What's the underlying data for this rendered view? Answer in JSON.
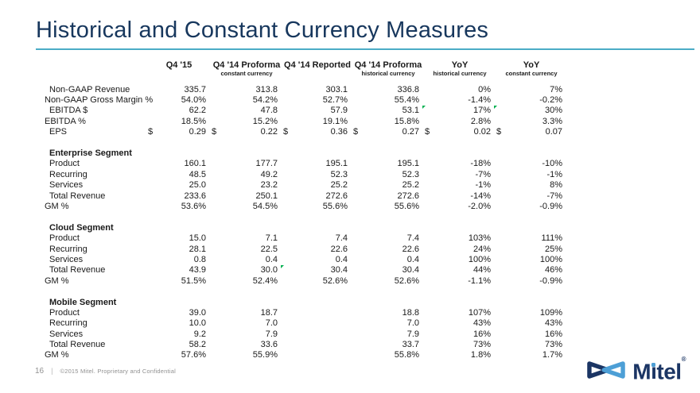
{
  "title": "Historical and Constant Currency Measures",
  "colors": {
    "title": "#17375d",
    "accent": "#4bacc6",
    "text": "#1a1a1a",
    "marker": "#00b050",
    "footer": "#919191",
    "logo_dark": "#1b3564",
    "logo_light": "#4d9fd6"
  },
  "table": {
    "currency_symbol": "$",
    "columns": [
      {
        "label": "Q4 '15",
        "sub": ""
      },
      {
        "label": "Q4 '14 Proforma",
        "sub": "constant currency"
      },
      {
        "label": "Q4 '14 Reported",
        "sub": ""
      },
      {
        "label": "Q4 '14 Proforma",
        "sub": "historical currency"
      },
      {
        "label": "YoY",
        "sub": "historical currency"
      },
      {
        "label": "YoY",
        "sub": "constant currency"
      }
    ],
    "rows": [
      {
        "type": "data",
        "label": "Non-GAAP Revenue",
        "values": [
          "335.7",
          "313.8",
          "303.1",
          "336.8",
          "0%",
          "7%"
        ]
      },
      {
        "type": "pct",
        "label": "Non-GAAP Gross Margin %",
        "values": [
          "54.0%",
          "54.2%",
          "52.7%",
          "55.4%",
          "-1.4%",
          "-0.2%"
        ]
      },
      {
        "type": "data",
        "label": "EBITDA $",
        "values": [
          "62.2",
          "47.8",
          "57.9",
          "53.1",
          "17%",
          "30%"
        ],
        "markers": [
          3,
          4
        ]
      },
      {
        "type": "pct",
        "label": "EBITDA %",
        "values": [
          "18.5%",
          "15.2%",
          "19.1%",
          "15.8%",
          "2.8%",
          "3.3%"
        ]
      },
      {
        "type": "currency",
        "label": "EPS",
        "values": [
          "0.29",
          "0.22",
          "0.36",
          "0.27",
          "0.02",
          "0.07"
        ]
      },
      {
        "type": "spacer"
      },
      {
        "type": "section",
        "label": "Enterprise Segment"
      },
      {
        "type": "data",
        "label": "Product",
        "values": [
          "160.1",
          "177.7",
          "195.1",
          "195.1",
          "-18%",
          "-10%"
        ]
      },
      {
        "type": "data",
        "label": "Recurring",
        "values": [
          "48.5",
          "49.2",
          "52.3",
          "52.3",
          "-7%",
          "-1%"
        ]
      },
      {
        "type": "data",
        "label": "Services",
        "values": [
          "25.0",
          "23.2",
          "25.2",
          "25.2",
          "-1%",
          "8%"
        ]
      },
      {
        "type": "data",
        "label": "Total Revenue",
        "values": [
          "233.6",
          "250.1",
          "272.6",
          "272.6",
          "-14%",
          "-7%"
        ]
      },
      {
        "type": "pct",
        "label": "GM %",
        "values": [
          "53.6%",
          "54.5%",
          "55.6%",
          "55.6%",
          "-2.0%",
          "-0.9%"
        ]
      },
      {
        "type": "spacer"
      },
      {
        "type": "section",
        "label": "Cloud Segment"
      },
      {
        "type": "data",
        "label": "Product",
        "values": [
          "15.0",
          "7.1",
          "7.4",
          "7.4",
          "103%",
          "111%"
        ]
      },
      {
        "type": "data",
        "label": "Recurring",
        "values": [
          "28.1",
          "22.5",
          "22.6",
          "22.6",
          "24%",
          "25%"
        ]
      },
      {
        "type": "data",
        "label": "Services",
        "values": [
          "0.8",
          "0.4",
          "0.4",
          "0.4",
          "100%",
          "100%"
        ]
      },
      {
        "type": "data",
        "label": "Total Revenue",
        "values": [
          "43.9",
          "30.0",
          "30.4",
          "30.4",
          "44%",
          "46%"
        ],
        "markers": [
          1
        ]
      },
      {
        "type": "pct",
        "label": "GM %",
        "values": [
          "51.5%",
          "52.4%",
          "52.6%",
          "52.6%",
          "-1.1%",
          "-0.9%"
        ]
      },
      {
        "type": "spacer"
      },
      {
        "type": "section",
        "label": "Mobile Segment"
      },
      {
        "type": "data",
        "label": "Product",
        "values": [
          "39.0",
          "18.7",
          "",
          "18.8",
          "107%",
          "109%"
        ]
      },
      {
        "type": "data",
        "label": "Recurring",
        "values": [
          "10.0",
          "7.0",
          "",
          "7.0",
          "43%",
          "43%"
        ]
      },
      {
        "type": "data",
        "label": "Services",
        "values": [
          "9.2",
          "7.9",
          "",
          "7.9",
          "16%",
          "16%"
        ]
      },
      {
        "type": "data",
        "label": "Total Revenue",
        "values": [
          "58.2",
          "33.6",
          "",
          "33.7",
          "73%",
          "73%"
        ]
      },
      {
        "type": "pct",
        "label": "GM %",
        "values": [
          "57.6%",
          "55.9%",
          "",
          "55.8%",
          "1.8%",
          "1.7%"
        ]
      }
    ]
  },
  "footer": {
    "page": "16",
    "separator": "|",
    "copyright": "©2015 Mitel. Proprietary and Confidential"
  },
  "logo": {
    "text_m": "M",
    "text_i": "ı",
    "text_tel": "tel",
    "registered": "®"
  }
}
